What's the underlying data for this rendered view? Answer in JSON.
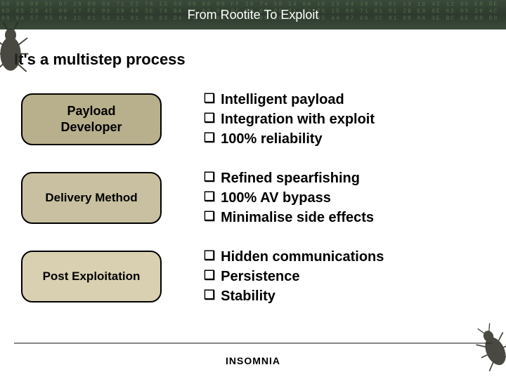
{
  "header": {
    "title": "From Rootite To Exploit",
    "hex_bg": "00 30 00 3C 07 28 00 00 71 C2 76 15 00 00 00 00 FF 29 74 58 14 0A 15 23 04 30 01 0C 13 10 45 12 05 E8 8E 6D 05 28 4C 00 17 FE 00 38 4A 3E 78 BA 04 02 01 0C 28 00 00 71 C2 76 15 00 71 61 01 2B E8 8E 6D 05 28 4C 00 6A 57 05 04 2C 01 52 21 01 00 83 D4 74 3C 00 00 77 00 5C F8 6D 05 44 97 66 3C 01 00 0A 3E BC 6E 80 80"
  },
  "subtitle": "It's a multistep process",
  "rows": [
    {
      "box_label": "Payload\nDeveloper",
      "bullets": [
        "Intelligent payload",
        "Integration with exploit",
        "100% reliability"
      ]
    },
    {
      "box_label": "Delivery Method",
      "bullets": [
        "Refined spearfishing",
        "100% AV bypass",
        "Minimalise side effects"
      ]
    },
    {
      "box_label": "Post Exploitation",
      "bullets": [
        "Hidden communications",
        "Persistence",
        "Stability"
      ]
    }
  ],
  "footer": {
    "logo": "INSOMNIA"
  },
  "style": {
    "box_colors": [
      "#b8b08c",
      "#c8c0a0",
      "#d8d0b0"
    ],
    "box_border": "#000000",
    "box_radius": 16,
    "title_fontsize": 18,
    "subtitle_fontsize": 22,
    "bullet_fontsize": 20,
    "bullet_marker": "❑",
    "bg": "#ffffff"
  }
}
